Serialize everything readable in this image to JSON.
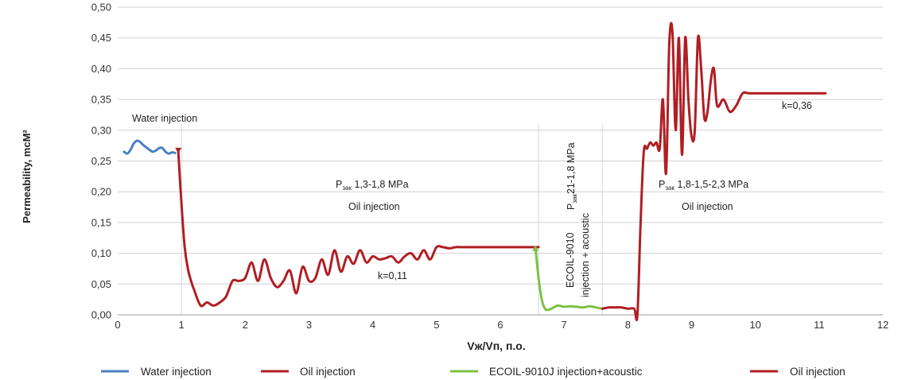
{
  "chart_data": {
    "type": "line",
    "xlabel": "Vж/Vп, п.о.",
    "ylabel": "Permeability, mcM²",
    "xlim": [
      0,
      12
    ],
    "ylim": [
      0,
      0.5
    ],
    "xticks": [
      "0",
      "1",
      "2",
      "3",
      "4",
      "5",
      "6",
      "7",
      "8",
      "9",
      "10",
      "11",
      "12"
    ],
    "yticks": [
      "0,00",
      "0,05",
      "0,10",
      "0,15",
      "0,20",
      "0,25",
      "0,30",
      "0,35",
      "0,40",
      "0,45",
      "0,50"
    ],
    "grid": "horizontal",
    "legend_position": "bottom",
    "colors": {
      "water": "#4a7fc1",
      "oil": "#b01e23",
      "ecoil": "#7cc243",
      "grid": "#d0d0d0"
    },
    "series": [
      {
        "name": "Water injection",
        "color": "#4a7fc1",
        "x": [
          0.1,
          0.15,
          0.2,
          0.25,
          0.3,
          0.35,
          0.4,
          0.45,
          0.5,
          0.55,
          0.6,
          0.65,
          0.7,
          0.75,
          0.8,
          0.85,
          0.9
        ],
        "y": [
          0.265,
          0.262,
          0.268,
          0.278,
          0.283,
          0.281,
          0.276,
          0.272,
          0.268,
          0.265,
          0.267,
          0.271,
          0.271,
          0.265,
          0.262,
          0.264,
          0.263
        ]
      },
      {
        "name": "Oil injection",
        "color": "#b01e23",
        "x": [
          0.95,
          1.0,
          1.05,
          1.1,
          1.15,
          1.2,
          1.3,
          1.4,
          1.5,
          1.6,
          1.7,
          1.8,
          1.9,
          2.0,
          2.1,
          2.2,
          2.3,
          2.4,
          2.5,
          2.6,
          2.7,
          2.8,
          2.9,
          3.0,
          3.1,
          3.2,
          3.3,
          3.4,
          3.5,
          3.6,
          3.7,
          3.8,
          3.9,
          4.0,
          4.1,
          4.2,
          4.3,
          4.4,
          4.5,
          4.6,
          4.7,
          4.8,
          4.9,
          5.0,
          5.1,
          5.2,
          5.3,
          5.4,
          5.5,
          5.6,
          5.7,
          5.8,
          5.9,
          6.0,
          6.2,
          6.4,
          6.6
        ],
        "y": [
          0.265,
          0.18,
          0.11,
          0.075,
          0.055,
          0.04,
          0.015,
          0.02,
          0.015,
          0.02,
          0.03,
          0.055,
          0.055,
          0.06,
          0.085,
          0.055,
          0.09,
          0.06,
          0.045,
          0.055,
          0.072,
          0.035,
          0.078,
          0.055,
          0.06,
          0.09,
          0.065,
          0.105,
          0.07,
          0.095,
          0.083,
          0.105,
          0.085,
          0.095,
          0.09,
          0.092,
          0.095,
          0.085,
          0.095,
          0.1,
          0.09,
          0.105,
          0.09,
          0.11,
          0.11,
          0.108,
          0.11,
          0.11,
          0.11,
          0.11,
          0.11,
          0.11,
          0.11,
          0.11,
          0.11,
          0.11,
          0.11
        ]
      },
      {
        "name": "ECOIL-9010J injection+acoustic",
        "color": "#7cc243",
        "x": [
          6.55,
          6.6,
          6.65,
          6.7,
          6.75,
          6.8,
          6.9,
          7.0,
          7.1,
          7.2,
          7.3,
          7.4,
          7.5,
          7.6
        ],
        "y": [
          0.11,
          0.06,
          0.025,
          0.01,
          0.008,
          0.01,
          0.015,
          0.013,
          0.014,
          0.013,
          0.012,
          0.014,
          0.012,
          0.01
        ]
      },
      {
        "name": "Oil injection",
        "color": "#b01e23",
        "x": [
          7.6,
          7.7,
          7.8,
          7.9,
          8.0,
          8.1,
          8.15,
          8.2,
          8.25,
          8.3,
          8.35,
          8.4,
          8.45,
          8.5,
          8.55,
          8.6,
          8.65,
          8.7,
          8.75,
          8.8,
          8.85,
          8.9,
          8.95,
          9.0,
          9.05,
          9.1,
          9.15,
          9.2,
          9.25,
          9.3,
          9.35,
          9.4,
          9.5,
          9.6,
          9.7,
          9.8,
          9.9,
          10.0,
          10.1,
          10.2,
          10.5,
          10.8,
          11.1
        ],
        "y": [
          0.01,
          0.012,
          0.012,
          0.012,
          0.01,
          0.01,
          0.0,
          0.15,
          0.265,
          0.27,
          0.28,
          0.275,
          0.28,
          0.27,
          0.35,
          0.23,
          0.44,
          0.46,
          0.3,
          0.45,
          0.26,
          0.45,
          0.35,
          0.29,
          0.3,
          0.45,
          0.4,
          0.32,
          0.33,
          0.38,
          0.4,
          0.34,
          0.35,
          0.33,
          0.34,
          0.36,
          0.36,
          0.36,
          0.36,
          0.36,
          0.36,
          0.36,
          0.36
        ]
      }
    ],
    "annotations": [
      {
        "id": "water",
        "text": "Water injection"
      },
      {
        "id": "p1_label",
        "text": "Pзак 1,3-1,8 MPa"
      },
      {
        "id": "oil1",
        "text": "Oil injection"
      },
      {
        "id": "k1",
        "text": "k=0,11"
      },
      {
        "id": "p2_label",
        "text": "Pзак 21-1,8 MPa"
      },
      {
        "id": "ecoil_label",
        "text": "ECOIL-9010"
      },
      {
        "id": "ecoil_label2",
        "text": "injection + acoustic"
      },
      {
        "id": "p3_label",
        "text": "Pзак 1,8-1,5-2,3 MPa"
      },
      {
        "id": "oil2",
        "text": "Oil injection"
      },
      {
        "id": "k2",
        "text": "k=0,36"
      }
    ],
    "vlines": [
      1.0,
      6.6,
      7.6
    ]
  }
}
